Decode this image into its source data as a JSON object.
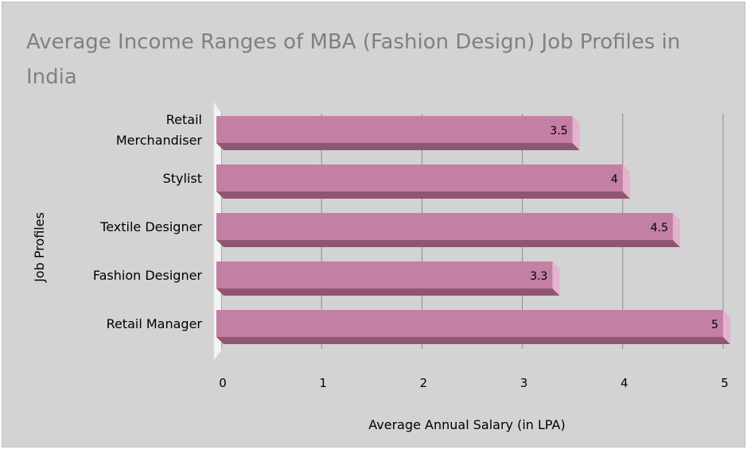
{
  "chart_data": {
    "type": "bar",
    "orientation": "horizontal",
    "title": "Average Income Ranges of MBA (Fashion Design) Job Profiles in India",
    "xlabel": "Average Annual Salary (in LPA)",
    "ylabel": "Job Profiles",
    "categories": [
      [
        "Retail",
        "Merchandiser"
      ],
      [
        "Stylist"
      ],
      [
        "Textile Designer"
      ],
      [
        "Fashion Designer"
      ],
      [
        "Retail Manager"
      ]
    ],
    "values": [
      3.5,
      4,
      4.5,
      3.3,
      5
    ],
    "value_labels": [
      "3.5",
      "4",
      "4.5",
      "3.3",
      "5"
    ],
    "xlim": [
      0,
      5
    ],
    "xticks": [
      "0",
      "1",
      "2",
      "3",
      "4",
      "5"
    ],
    "grid": true,
    "colors": {
      "bar_face": "#c47fa5",
      "bar_top": "#d99abd",
      "bar_bottom": "#8f5674",
      "bar_end": "#e3b2cd",
      "background": "#d3d3d3",
      "grid": "#8c8c8c",
      "title": "#808080"
    }
  }
}
